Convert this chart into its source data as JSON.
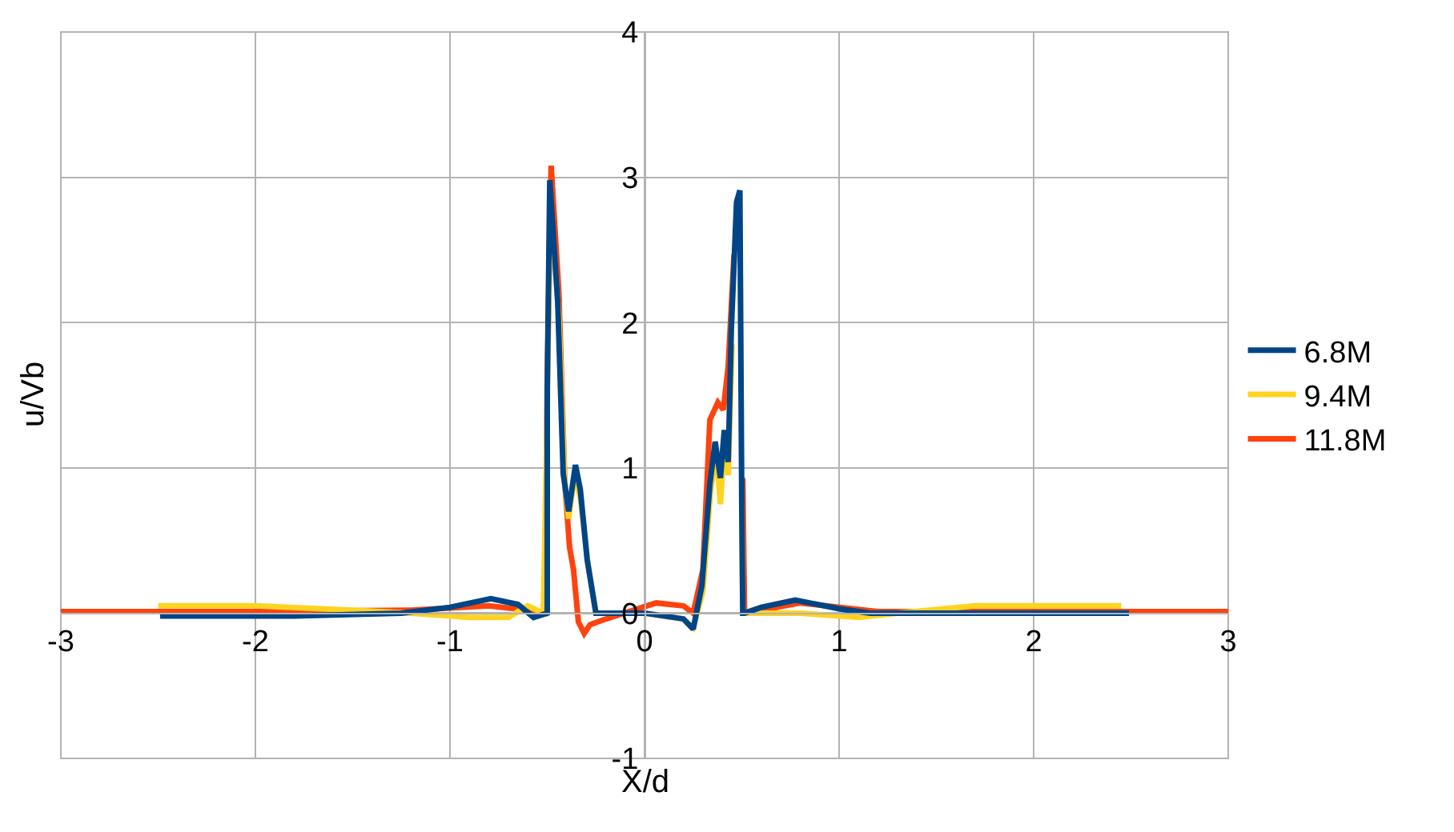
{
  "chart_data": {
    "type": "line",
    "xlabel": "X/d",
    "ylabel": "u/Vb",
    "xlim": [
      -3,
      3
    ],
    "xticks": [
      -3,
      -2,
      -1,
      0,
      1,
      2,
      3
    ],
    "ylim": [
      -1,
      4
    ],
    "yticks": [
      -1,
      0,
      1,
      2,
      3,
      4
    ],
    "grid": true,
    "legend": "right",
    "marker": "none",
    "line_style": "solid",
    "series": [
      {
        "name": "6.8M",
        "color": "#004586",
        "x": [
          -2.49,
          -1.8,
          -1.25,
          -1.0,
          -0.79,
          -0.65,
          -0.57,
          -0.5,
          -0.5,
          -0.487,
          -0.446,
          -0.418,
          -0.39,
          -0.355,
          -0.33,
          -0.295,
          -0.25,
          0.0,
          0.2,
          0.25,
          0.295,
          0.336,
          0.363,
          0.39,
          0.41,
          0.43,
          0.446,
          0.473,
          0.49,
          0.5,
          0.505,
          0.514,
          0.6,
          0.775,
          1.0,
          1.16,
          2.0,
          2.49
        ],
        "values": [
          -0.02,
          -0.02,
          0.0,
          0.04,
          0.1,
          0.06,
          -0.03,
          0.0,
          1.55,
          2.98,
          2.14,
          0.96,
          0.7,
          1.02,
          0.85,
          0.37,
          0.0,
          0.0,
          -0.04,
          -0.11,
          0.19,
          0.89,
          1.18,
          0.93,
          1.26,
          1.04,
          1.95,
          2.83,
          2.91,
          0.7,
          0.0,
          0.0,
          0.04,
          0.09,
          0.03,
          0.0,
          0.0,
          0.0
        ]
      },
      {
        "name": "9.4M",
        "color": "#ffd320",
        "x": [
          -2.5,
          -2.0,
          -1.5,
          -1.2,
          -0.9,
          -0.7,
          -0.6,
          -0.52,
          -0.5,
          -0.485,
          -0.44,
          -0.41,
          -0.39,
          -0.36,
          -0.33,
          -0.29,
          -0.25,
          0.0,
          0.2,
          0.25,
          0.3,
          0.34,
          0.37,
          0.39,
          0.41,
          0.43,
          0.45,
          0.475,
          0.49,
          0.5,
          0.505,
          0.52,
          0.8,
          1.1,
          1.3,
          1.7,
          2.0,
          2.45
        ],
        "values": [
          0.05,
          0.05,
          0.02,
          0.0,
          -0.03,
          -0.03,
          0.05,
          0.0,
          1.4,
          2.85,
          2.05,
          0.9,
          0.65,
          0.95,
          0.8,
          0.33,
          0.0,
          0.0,
          -0.04,
          -0.1,
          0.15,
          0.85,
          1.1,
          0.75,
          1.2,
          0.95,
          1.85,
          null,
          null,
          0.74,
          0.0,
          0.0,
          0.0,
          -0.03,
          0.0,
          0.05,
          0.05,
          0.05
        ]
      },
      {
        "name": "11.8M",
        "color": "#ff420e",
        "x": [
          -3.0,
          -2.0,
          -1.2,
          -0.8,
          -0.6,
          -0.51,
          -0.5,
          -0.48,
          -0.44,
          -0.41,
          -0.385,
          -0.365,
          -0.34,
          -0.31,
          -0.28,
          -0.22,
          0.06,
          0.2,
          0.25,
          0.3,
          0.336,
          0.377,
          0.405,
          0.43,
          0.46,
          0.487,
          0.505,
          0.514,
          0.52,
          0.8,
          1.2,
          2.0,
          3.0
        ],
        "values": [
          0.01,
          0.01,
          0.02,
          0.05,
          0.02,
          0.0,
          1.6,
          3.08,
          2.2,
          0.9,
          0.45,
          0.3,
          -0.06,
          -0.14,
          -0.08,
          -0.05,
          0.07,
          0.05,
          0.0,
          0.3,
          1.33,
          1.45,
          1.4,
          1.7,
          2.47,
          null,
          0.93,
          0.0,
          0.0,
          0.07,
          0.01,
          0.01,
          0.01
        ]
      }
    ]
  }
}
